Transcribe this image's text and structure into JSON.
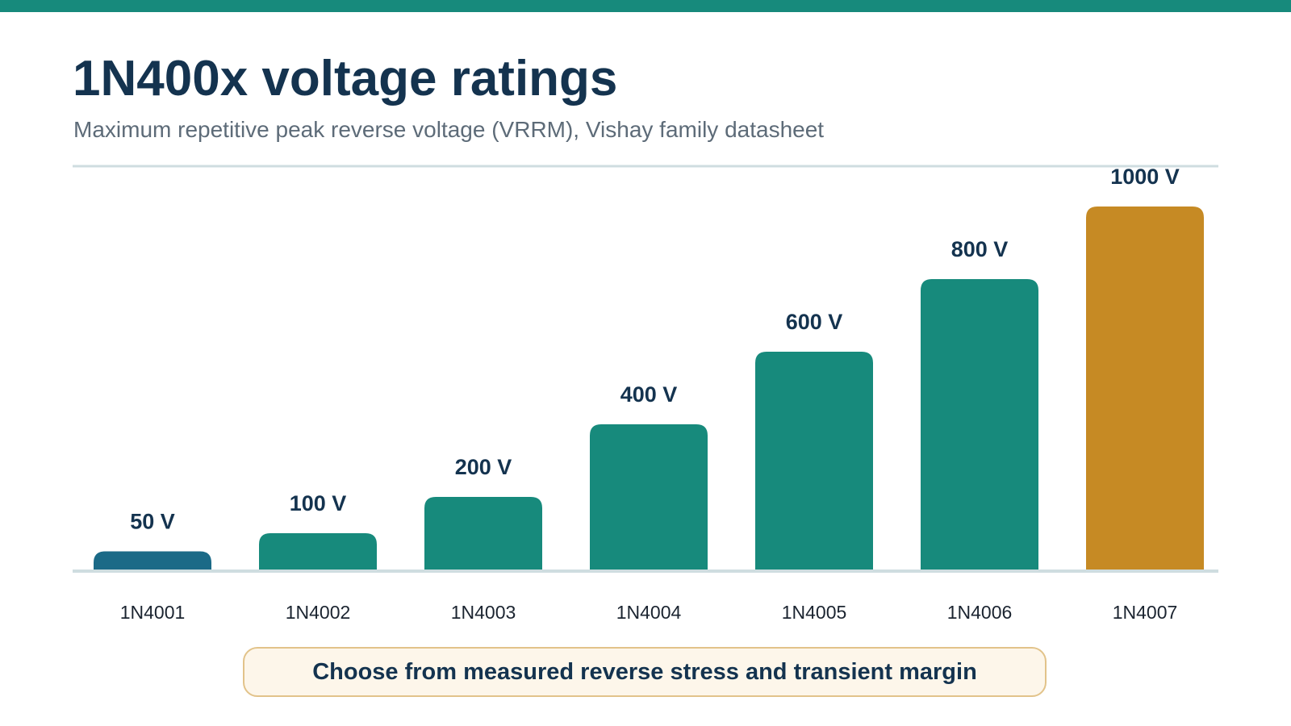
{
  "title": "1N400x voltage ratings",
  "subtitle": "Maximum repetitive peak reverse voltage (VRRM), Vishay family datasheet",
  "footer_note": "Choose from measured reverse stress and transient margin",
  "colors": {
    "accent_band": "#178a7c",
    "bar_default": "#178a7c",
    "bar_first": "#1b6a87",
    "bar_highlight": "#c68a24",
    "title": "#14334f",
    "axis_line": "#cfdde0"
  },
  "chart_data": {
    "type": "bar",
    "title": "1N400x voltage ratings",
    "subtitle": "Maximum repetitive peak reverse voltage (VRRM), Vishay family datasheet",
    "xlabel": "",
    "ylabel": "",
    "categories": [
      "1N4001",
      "1N4002",
      "1N4003",
      "1N4004",
      "1N4005",
      "1N4006",
      "1N4007"
    ],
    "values": [
      50,
      100,
      200,
      400,
      600,
      800,
      1000
    ],
    "value_labels": [
      "50 V",
      "100 V",
      "200 V",
      "400 V",
      "600 V",
      "800 V",
      "1000 V"
    ],
    "unit": "V",
    "ylim": [
      0,
      1000
    ],
    "grid": false,
    "legend": "none",
    "highlight_category": "1N4007"
  }
}
